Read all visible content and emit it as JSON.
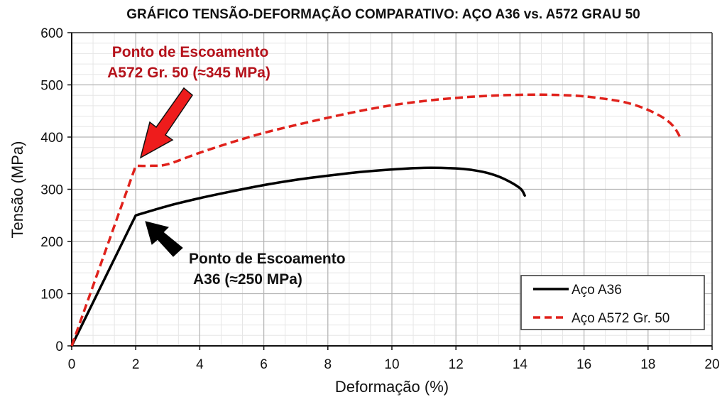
{
  "chart_data": {
    "type": "line",
    "title": "GRÁFICO TENSÃO-DEFORMAÇÃO COMPARATIVO: AÇO A36 vs. A572 GRAU 50",
    "xlabel": "Deformação (%)",
    "ylabel": "Tensão (MPa)",
    "xlim": [
      0,
      20
    ],
    "ylim": [
      0,
      600
    ],
    "xticks": [
      0,
      2,
      4,
      6,
      8,
      10,
      12,
      14,
      16,
      18,
      20
    ],
    "yticks": [
      0,
      100,
      200,
      300,
      400,
      500,
      600
    ],
    "grid": true,
    "legend_position": "lower right",
    "series": [
      {
        "name": "Aço A36",
        "color": "#000000",
        "style": "solid",
        "x": [
          0,
          2,
          3,
          4,
          5,
          6,
          7,
          8,
          9,
          10,
          11,
          12,
          12.5,
          13,
          13.5,
          14,
          14.15
        ],
        "y": [
          0,
          250,
          268,
          283,
          296,
          308,
          318,
          326,
          333,
          338,
          341,
          340,
          337,
          331,
          320,
          302,
          288
        ]
      },
      {
        "name": "Aço A572 Gr. 50",
        "color": "#e0211b",
        "style": "dashed",
        "x": [
          0,
          2,
          2.5,
          3,
          4,
          5,
          6,
          7,
          8,
          9,
          10,
          11,
          12,
          13,
          14,
          15,
          16,
          17,
          17.5,
          18,
          18.5,
          18.8,
          19
        ],
        "y": [
          0,
          345,
          345,
          348,
          370,
          390,
          408,
          423,
          437,
          450,
          461,
          469,
          475,
          479,
          481,
          481,
          478,
          470,
          463,
          452,
          436,
          420,
          400
        ]
      }
    ],
    "annotations": [
      {
        "id": "a572-yield",
        "lines": [
          "Ponto de Escoamento",
          "A572 Gr. 50 (≈345 MPa)"
        ],
        "color": "#b5121b",
        "arrow_color": "#ee1c1c",
        "points_to": [
          2,
          345
        ]
      },
      {
        "id": "a36-yield",
        "lines": [
          "Ponto de Escoamento",
          "A36 (≈250 MPa)"
        ],
        "color": "#111111",
        "arrow_color": "#000000",
        "points_to": [
          2,
          250
        ]
      }
    ]
  }
}
